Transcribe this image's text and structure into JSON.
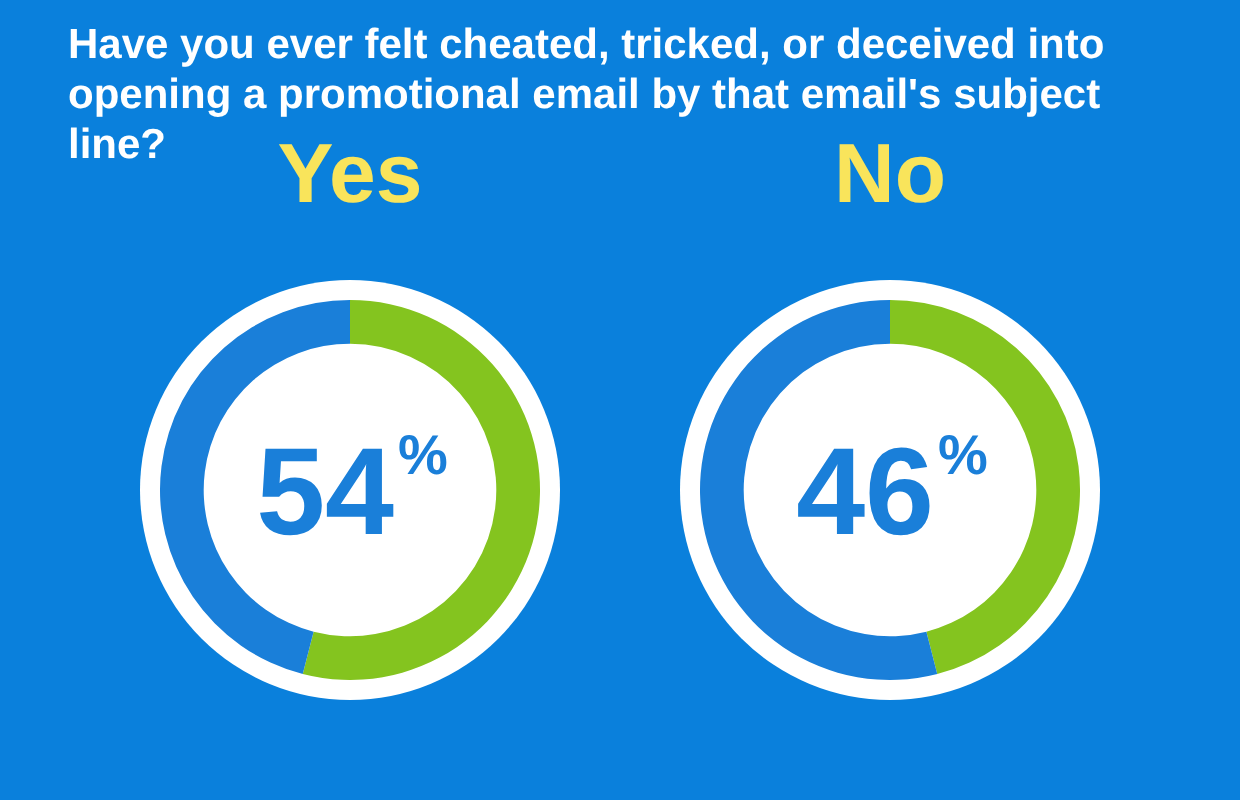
{
  "chart_data": [
    {
      "type": "other",
      "title": "Have you ever felt cheated, tricked, or deceived into opening a promotional email by that email's subject line?"
    },
    {
      "type": "donut",
      "title": "Yes",
      "categories": [
        null,
        null
      ],
      "values": [
        54,
        46
      ],
      "colors": [
        "#84c41f",
        "#1a7fd9"
      ],
      "value_labels": [
        "54%",
        null
      ],
      "legend": false
    },
    {
      "type": "donut",
      "title": "No",
      "categories": [
        null,
        null
      ],
      "values": [
        46,
        54
      ],
      "colors": [
        "#84c41f",
        "#1a7fd9"
      ],
      "value_labels": [
        "46%",
        null
      ],
      "legend": false
    }
  ]
}
